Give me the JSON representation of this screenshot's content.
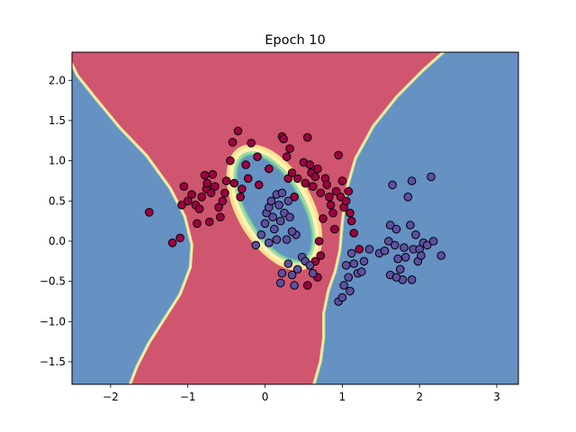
{
  "chart_data": {
    "type": "scatter",
    "title": "Epoch 10",
    "xlabel": "",
    "ylabel": "",
    "xlim": [
      -2.5,
      3.28
    ],
    "ylim": [
      -1.78,
      2.35
    ],
    "x_ticks": [
      -2,
      -1,
      0,
      1,
      2,
      3
    ],
    "y_ticks": [
      -1.5,
      -1.0,
      -0.5,
      0.0,
      0.5,
      1.0,
      1.5,
      2.0
    ],
    "grid": false,
    "background_regions": "decision boundary: class 0 (red) and class 1 (blue) regions with a thin yellow-green transition band",
    "colors": {
      "class_0_region": "#d0566f",
      "class_1_region": "#6591c3",
      "band_yellow": "#fee090",
      "band_cream": "#fdf3b7",
      "band_green": "#a6dba0",
      "band_teal": "#66c2a5",
      "class_0_point": "#9e0142",
      "class_1_point": "#5e4fa2",
      "point_edge": "#000000"
    },
    "series": [
      {
        "class": 0,
        "points": [
          [
            -1.5,
            0.36
          ],
          [
            -1.2,
            -0.02
          ],
          [
            -1.1,
            0.04
          ],
          [
            -1.08,
            0.45
          ],
          [
            -1.05,
            0.68
          ],
          [
            -1.0,
            0.5
          ],
          [
            -0.95,
            0.58
          ],
          [
            -0.9,
            0.45
          ],
          [
            -0.88,
            0.22
          ],
          [
            -0.85,
            0.4
          ],
          [
            -0.82,
            0.55
          ],
          [
            -0.78,
            0.82
          ],
          [
            -0.76,
            0.65
          ],
          [
            -0.75,
            0.72
          ],
          [
            -0.72,
            0.24
          ],
          [
            -0.7,
            0.6
          ],
          [
            -0.68,
            0.83
          ],
          [
            -0.65,
            0.68
          ],
          [
            -0.6,
            0.42
          ],
          [
            -0.58,
            0.3
          ],
          [
            -0.55,
            0.5
          ],
          [
            -0.52,
            0.6
          ],
          [
            -0.5,
            0.75
          ],
          [
            -0.45,
            1.0
          ],
          [
            -0.42,
            1.23
          ],
          [
            -0.4,
            0.72
          ],
          [
            -0.35,
            1.37
          ],
          [
            -0.32,
            0.55
          ],
          [
            -0.3,
            0.65
          ],
          [
            -0.25,
            0.95
          ],
          [
            -0.22,
            0.78
          ],
          [
            -0.18,
            1.22
          ],
          [
            -0.1,
            1.05
          ],
          [
            0.22,
            1.3
          ],
          [
            0.24,
            1.27
          ],
          [
            0.28,
            1.05
          ],
          [
            0.3,
            0.78
          ],
          [
            0.32,
            1.15
          ],
          [
            0.38,
            0.55
          ],
          [
            0.42,
            0.78
          ],
          [
            0.5,
            0.98
          ],
          [
            0.52,
            0.72
          ],
          [
            0.55,
            1.29
          ],
          [
            0.58,
            0.95
          ],
          [
            0.6,
            0.85
          ],
          [
            0.62,
            0.68
          ],
          [
            0.65,
            0.8
          ],
          [
            0.68,
            0.9
          ],
          [
            0.72,
            0.6
          ],
          [
            0.75,
            0.28
          ],
          [
            0.78,
            0.78
          ],
          [
            0.8,
            0.7
          ],
          [
            0.83,
            0.55
          ],
          [
            0.85,
            0.45
          ],
          [
            0.88,
            0.35
          ],
          [
            0.9,
            0.15
          ],
          [
            0.92,
            0.62
          ],
          [
            0.95,
            1.07
          ],
          [
            0.98,
            0.55
          ],
          [
            1.0,
            0.75
          ],
          [
            1.02,
            0.42
          ],
          [
            1.05,
            0.5
          ],
          [
            1.08,
            0.62
          ],
          [
            1.1,
            0.35
          ],
          [
            1.12,
            0.25
          ],
          [
            1.15,
            0.1
          ],
          [
            0.7,
            0.0
          ],
          [
            0.72,
            -0.18
          ],
          [
            0.65,
            -0.25
          ],
          [
            0.68,
            -0.45
          ],
          [
            0.55,
            -0.55
          ],
          [
            1.22,
            -0.1
          ],
          [
            -0.08,
            0.7
          ],
          [
            0.05,
            0.9
          ],
          [
            0.35,
            0.85
          ]
        ]
      },
      {
        "class": 1,
        "points": [
          [
            -0.05,
            0.08
          ],
          [
            0.0,
            0.22
          ],
          [
            0.02,
            0.35
          ],
          [
            0.05,
            0.42
          ],
          [
            0.08,
            0.5
          ],
          [
            0.1,
            0.3
          ],
          [
            0.12,
            0.15
          ],
          [
            0.15,
            0.58
          ],
          [
            0.18,
            0.45
          ],
          [
            0.2,
            0.25
          ],
          [
            0.22,
            0.6
          ],
          [
            0.25,
            0.35
          ],
          [
            0.28,
            0.02
          ],
          [
            0.3,
            0.5
          ],
          [
            0.32,
            0.3
          ],
          [
            -0.12,
            -0.05
          ],
          [
            0.15,
            0.02
          ],
          [
            0.22,
            -0.4
          ],
          [
            0.3,
            -0.28
          ],
          [
            0.35,
            -0.42
          ],
          [
            0.38,
            -0.55
          ],
          [
            0.42,
            -0.35
          ],
          [
            0.48,
            -0.2
          ],
          [
            0.52,
            -0.25
          ],
          [
            0.58,
            -0.3
          ],
          [
            0.62,
            -0.4
          ],
          [
            0.2,
            -0.52
          ],
          [
            0.4,
            0.08
          ],
          [
            0.35,
            0.12
          ],
          [
            0.05,
            -0.02
          ],
          [
            0.95,
            -0.75
          ],
          [
            1.0,
            -0.7
          ],
          [
            1.02,
            -0.55
          ],
          [
            1.05,
            -0.3
          ],
          [
            1.08,
            -0.45
          ],
          [
            1.1,
            -0.62
          ],
          [
            1.12,
            -0.15
          ],
          [
            1.15,
            -0.28
          ],
          [
            1.2,
            -0.4
          ],
          [
            1.25,
            -0.38
          ],
          [
            1.28,
            -0.25
          ],
          [
            1.35,
            -0.1
          ],
          [
            1.48,
            -0.15
          ],
          [
            1.55,
            -0.12
          ],
          [
            1.6,
            0.0
          ],
          [
            1.62,
            0.2
          ],
          [
            1.65,
            0.7
          ],
          [
            1.68,
            -0.05
          ],
          [
            1.7,
            0.15
          ],
          [
            1.72,
            -0.22
          ],
          [
            1.75,
            -0.35
          ],
          [
            1.78,
            -0.48
          ],
          [
            1.8,
            -0.08
          ],
          [
            1.82,
            -0.2
          ],
          [
            1.85,
            0.55
          ],
          [
            1.88,
            0.2
          ],
          [
            1.9,
            0.75
          ],
          [
            1.92,
            -0.1
          ],
          [
            1.95,
            0.08
          ],
          [
            1.98,
            -0.25
          ],
          [
            2.0,
            -0.1
          ],
          [
            2.02,
            -0.18
          ],
          [
            2.05,
            -0.02
          ],
          [
            2.1,
            -0.05
          ],
          [
            2.15,
            0.8
          ],
          [
            2.18,
            0.0
          ],
          [
            2.28,
            -0.18
          ],
          [
            1.62,
            -0.42
          ],
          [
            1.7,
            -0.45
          ],
          [
            1.9,
            -0.48
          ]
        ]
      }
    ]
  }
}
